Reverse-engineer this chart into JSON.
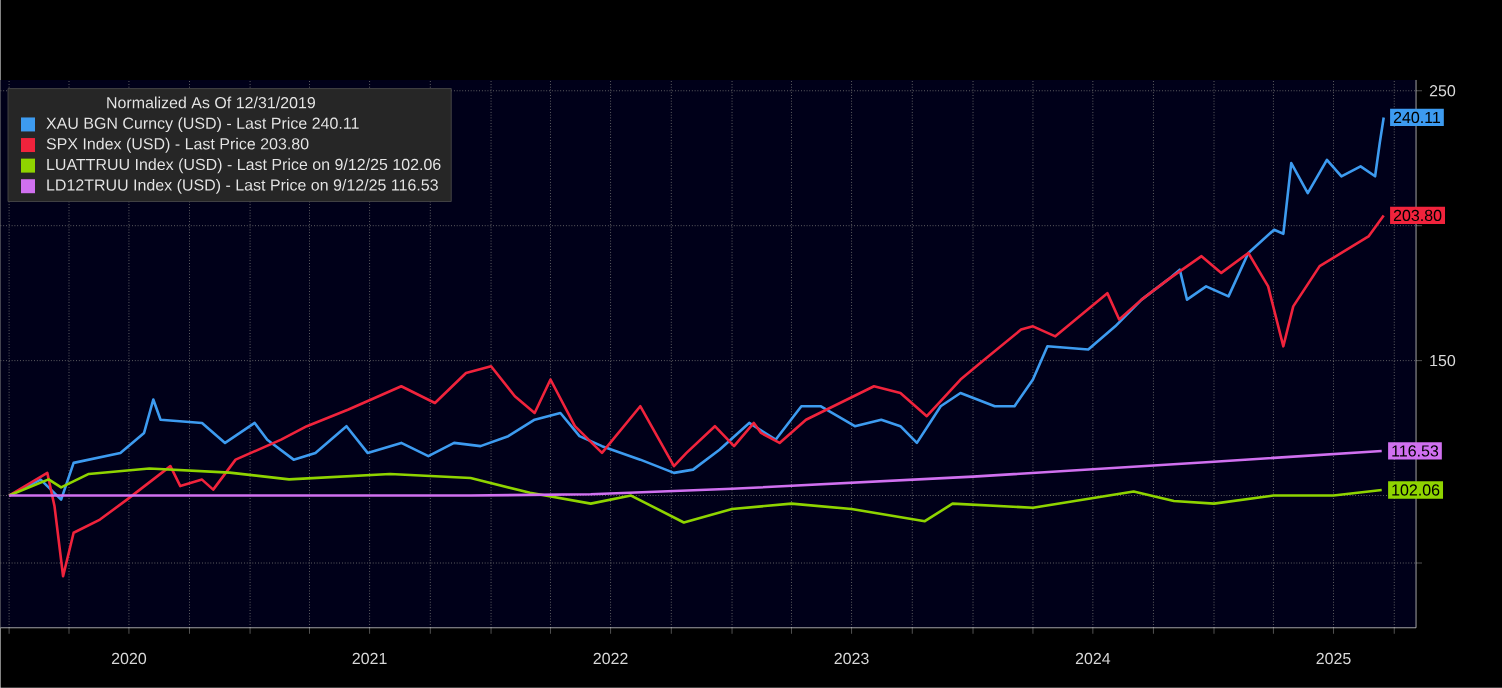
{
  "chart_data": {
    "type": "line",
    "legend_title": "Normalized As Of 12/31/2019",
    "legend": "top left",
    "grid": true,
    "xlim": [
      "2019-12-19",
      "2025-11-03"
    ],
    "ylim": [
      51,
      254
    ],
    "xticks": [
      {
        "value": "2020-01-01",
        "label": null
      },
      {
        "value": "2020-04-01",
        "label": null
      },
      {
        "value": "2020-07-01",
        "label": "2020"
      },
      {
        "value": "2020-10-01",
        "label": null
      },
      {
        "value": "2021-01-01",
        "label": null
      },
      {
        "value": "2021-04-01",
        "label": null
      },
      {
        "value": "2021-07-01",
        "label": "2021"
      },
      {
        "value": "2021-10-01",
        "label": null
      },
      {
        "value": "2022-01-01",
        "label": null
      },
      {
        "value": "2022-04-01",
        "label": null
      },
      {
        "value": "2022-07-01",
        "label": "2022"
      },
      {
        "value": "2022-10-01",
        "label": null
      },
      {
        "value": "2023-01-01",
        "label": null
      },
      {
        "value": "2023-04-01",
        "label": null
      },
      {
        "value": "2023-07-01",
        "label": "2023"
      },
      {
        "value": "2023-10-01",
        "label": null
      },
      {
        "value": "2024-01-01",
        "label": null
      },
      {
        "value": "2024-04-01",
        "label": null
      },
      {
        "value": "2024-07-01",
        "label": "2024"
      },
      {
        "value": "2024-10-01",
        "label": null
      },
      {
        "value": "2025-01-01",
        "label": null
      },
      {
        "value": "2025-04-01",
        "label": null
      },
      {
        "value": "2025-07-01",
        "label": "2025"
      },
      {
        "value": "2025-10-01",
        "label": null
      }
    ],
    "yticks": [
      {
        "value": 75,
        "label": null
      },
      {
        "value": 100,
        "label": null
      },
      150,
      {
        "value": 200,
        "label": null
      },
      250
    ],
    "series": [
      {
        "name": "XAU BGN Curncy (USD) - Last Price 240.11",
        "color": "#3d9bf0",
        "x": [
          "2020-01-01",
          "2020-02-18",
          "2020-03-20",
          "2020-04-08",
          "2020-06-18",
          "2020-07-24",
          "2020-08-07",
          "2020-08-18",
          "2020-10-20",
          "2020-11-24",
          "2021-01-08",
          "2021-01-27",
          "2021-03-08",
          "2021-04-10",
          "2021-05-27",
          "2021-06-28",
          "2021-08-18",
          "2021-09-28",
          "2021-11-06",
          "2021-12-16",
          "2022-01-27",
          "2022-03-08",
          "2022-04-16",
          "2022-05-15",
          "2022-06-18",
          "2022-08-15",
          "2022-10-05",
          "2022-11-03",
          "2022-12-13",
          "2023-01-27",
          "2023-03-08",
          "2023-04-16",
          "2023-05-15",
          "2023-07-06",
          "2023-08-15",
          "2023-09-13",
          "2023-10-08",
          "2023-11-13",
          "2023-12-13",
          "2024-02-03",
          "2024-03-04",
          "2024-04-01",
          "2024-04-23",
          "2024-06-24",
          "2024-08-04",
          "2024-09-13",
          "2024-10-23",
          "2024-11-10",
          "2024-11-21",
          "2024-12-20",
          "2025-01-23",
          "2025-02-22",
          "2025-04-02",
          "2025-04-16",
          "2025-04-28",
          "2025-05-23",
          "2025-06-21",
          "2025-07-13",
          "2025-08-11",
          "2025-09-02",
          "2025-09-09",
          "2025-09-15"
        ],
        "values": [
          100,
          105.9,
          98.5,
          112.1,
          115.8,
          123.2,
          135.6,
          128.1,
          126.9,
          119.5,
          126.9,
          120.7,
          113.3,
          115.8,
          125.7,
          115.8,
          119.5,
          114.6,
          119.5,
          118.3,
          122,
          128.1,
          130.6,
          122,
          118.3,
          113.3,
          108.4,
          109.6,
          117,
          126.9,
          120.7,
          133.1,
          133.1,
          125.7,
          128.1,
          125.7,
          119.5,
          133.1,
          138,
          133.1,
          133.1,
          143,
          155.3,
          154.1,
          162.7,
          172.6,
          180,
          183.7,
          172.6,
          177.5,
          173.8,
          189.9,
          198.5,
          197,
          223.2,
          212.1,
          224.4,
          218.3,
          222,
          218.3,
          230.6,
          240.11
        ],
        "value_labels": [
          null,
          null,
          null,
          null,
          null,
          null,
          null,
          null,
          null,
          null,
          null,
          null,
          null,
          null,
          null,
          null,
          null,
          null,
          null,
          null,
          null,
          null,
          null,
          null,
          null,
          null,
          null,
          null,
          null,
          null,
          null,
          null,
          null,
          null,
          null,
          null,
          null,
          null,
          null,
          null,
          null,
          null,
          null,
          null,
          null,
          null,
          null,
          null,
          null,
          null,
          null,
          null,
          null,
          null,
          null,
          null,
          null,
          null,
          null,
          null,
          null,
          "240.11"
        ]
      },
      {
        "name": "SPX Index (USD) - Last Price 203.80",
        "color": "#f0233c",
        "x": [
          "2020-01-01",
          "2020-02-28",
          "2020-03-10",
          "2020-03-23",
          "2020-04-08",
          "2020-05-18",
          "2020-06-28",
          "2020-09-02",
          "2020-09-17",
          "2020-10-20",
          "2020-11-06",
          "2020-12-10",
          "2021-02-17",
          "2021-03-28",
          "2021-05-30",
          "2021-08-18",
          "2021-10-08",
          "2021-11-24",
          "2022-01-01",
          "2022-02-06",
          "2022-03-08",
          "2022-04-01",
          "2022-05-08",
          "2022-06-18",
          "2022-08-15",
          "2022-10-05",
          "2022-10-24",
          "2022-12-06",
          "2023-01-04",
          "2023-02-03",
          "2023-02-14",
          "2023-03-14",
          "2023-04-23",
          "2023-08-04",
          "2023-09-13",
          "2023-10-23",
          "2023-12-13",
          "2024-01-12",
          "2024-03-14",
          "2024-04-01",
          "2024-05-05",
          "2024-07-23",
          "2024-08-10",
          "2024-09-13",
          "2024-10-23",
          "2024-12-13",
          "2025-01-12",
          "2025-02-22",
          "2025-03-24",
          "2025-04-16",
          "2025-05-01",
          "2025-06-10",
          "2025-07-13",
          "2025-08-23",
          "2025-09-15"
        ],
        "values": [
          100,
          108.4,
          96,
          70.1,
          86.2,
          91.1,
          98.5,
          110.9,
          103.5,
          105.9,
          102.2,
          113.3,
          120.7,
          125.7,
          131.9,
          140.5,
          134.3,
          145.4,
          147.9,
          136.8,
          130.6,
          143,
          125.7,
          115.8,
          133.1,
          110.9,
          115.8,
          125.7,
          118.3,
          126.9,
          123.2,
          119.5,
          128.1,
          140.5,
          138,
          129.4,
          143,
          149.1,
          161.5,
          162.7,
          159,
          175,
          165.2,
          172.6,
          180,
          188.7,
          182.5,
          189.9,
          177.5,
          155.3,
          170.1,
          185,
          189.9,
          196,
          203.8
        ],
        "value_labels": [
          null,
          null,
          null,
          null,
          null,
          null,
          null,
          null,
          null,
          null,
          null,
          null,
          null,
          null,
          null,
          null,
          null,
          null,
          null,
          null,
          null,
          null,
          null,
          null,
          null,
          null,
          null,
          null,
          null,
          null,
          null,
          null,
          null,
          null,
          null,
          null,
          null,
          null,
          null,
          null,
          null,
          null,
          null,
          null,
          null,
          null,
          null,
          null,
          null,
          null,
          null,
          null,
          null,
          null,
          "203.80"
        ]
      },
      {
        "name": "LUATTRUU Index (USD) - Last Price on 9/12/25 102.06",
        "color": "#8fd400",
        "x": [
          "2020-01-01",
          "2020-03-01",
          "2020-03-20",
          "2020-05-01",
          "2020-08-01",
          "2020-12-01",
          "2021-03-01",
          "2021-08-01",
          "2021-12-01",
          "2022-03-01",
          "2022-06-01",
          "2022-08-01",
          "2022-10-20",
          "2023-01-01",
          "2023-04-01",
          "2023-07-01",
          "2023-10-20",
          "2023-12-01",
          "2024-04-01",
          "2024-09-01",
          "2024-11-01",
          "2025-01-01",
          "2025-04-01",
          "2025-07-01",
          "2025-09-12"
        ],
        "values": [
          100,
          106,
          103,
          108,
          110,
          108.5,
          106,
          108,
          106.5,
          101,
          97,
          100,
          90,
          95,
          97,
          95,
          90.5,
          97,
          95.5,
          101.5,
          98,
          97,
          100,
          100,
          102.06
        ],
        "value_labels": [
          null,
          null,
          null,
          null,
          null,
          null,
          null,
          null,
          null,
          null,
          null,
          null,
          null,
          null,
          null,
          null,
          null,
          null,
          null,
          null,
          null,
          null,
          null,
          null,
          "102.06"
        ]
      },
      {
        "name": "LD12TRUU Index (USD) - Last Price on 9/12/25 116.53",
        "color": "#d070f0",
        "x": [
          "2020-01-01",
          "2021-12-01",
          "2022-06-01",
          "2023-01-01",
          "2024-01-01",
          "2025-01-01",
          "2025-09-12"
        ],
        "values": [
          100,
          100,
          100.5,
          102.5,
          107,
          112.5,
          116.53
        ],
        "value_labels": [
          null,
          null,
          null,
          null,
          null,
          null,
          "116.53"
        ]
      }
    ]
  }
}
